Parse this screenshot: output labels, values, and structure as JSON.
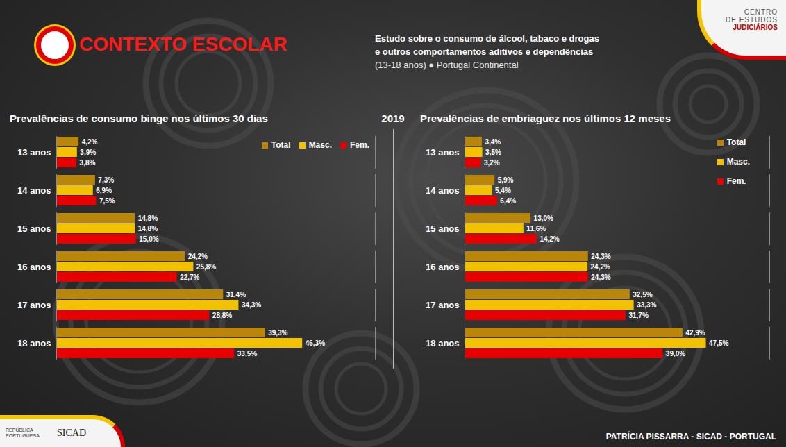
{
  "page": {
    "header": "CONTEXTO ESCOLAR",
    "subtitle": [
      "Estudo sobre o consumo de álcool, tabaco e drogas",
      "e outros comportamentos aditivos e dependências",
      "(13-18 anos) ● Portugal Continental"
    ],
    "year": "2019",
    "logo": [
      "CENTRO",
      "DE ESTUDOS",
      "JUDICIÁRIOS"
    ],
    "bottom_logos": [
      "REPÚBLICA PORTUGUESA",
      "SICAD"
    ],
    "footer": "PATRÍCIA PISSARRA - SICAD - PORTUGAL"
  },
  "chart_data": [
    {
      "type": "bar",
      "orientation": "horizontal",
      "title": "Prevalências de consumo binge nos últimos 30 dias",
      "categories": [
        "13 anos",
        "14 anos",
        "15 anos",
        "16 anos",
        "17 anos",
        "18 anos"
      ],
      "series": [
        {
          "name": "Total",
          "color": "#b8860b",
          "values": [
            4.2,
            7.3,
            14.8,
            24.2,
            31.4,
            39.3
          ],
          "value_labels": [
            "4,2%",
            "7,3%",
            "14,8%",
            "24,2%",
            "31,4%",
            "39,3%"
          ]
        },
        {
          "name": "Masc.",
          "color": "#f2c200",
          "values": [
            3.9,
            6.9,
            14.8,
            25.8,
            34.3,
            46.3
          ],
          "value_labels": [
            "3,9%",
            "6,9%",
            "14,8%",
            "25,8%",
            "34,3%",
            "46,3%"
          ]
        },
        {
          "name": "Fem.",
          "color": "#e60000",
          "values": [
            3.8,
            7.5,
            15.0,
            22.7,
            28.8,
            33.5
          ],
          "value_labels": [
            "3,8%",
            "7,5%",
            "15,0%",
            "22,7%",
            "28,8%",
            "33,5%"
          ]
        }
      ],
      "xlim": [
        0,
        60
      ],
      "data_labels": true,
      "tick_labels": "y",
      "legend": "top-right",
      "grid": false
    },
    {
      "type": "bar",
      "orientation": "horizontal",
      "title": "Prevalências de embriaguez nos últimos 12 meses",
      "categories": [
        "13 anos",
        "14 anos",
        "15 anos",
        "16 anos",
        "17 anos",
        "18 anos"
      ],
      "series": [
        {
          "name": "Total",
          "color": "#b8860b",
          "values": [
            3.4,
            5.9,
            13.0,
            24.3,
            32.5,
            42.9
          ],
          "value_labels": [
            "3,4%",
            "5,9%",
            "13,0%",
            "24,3%",
            "32,5%",
            "42,9%"
          ]
        },
        {
          "name": "Masc.",
          "color": "#f2c200",
          "values": [
            3.5,
            5.4,
            11.6,
            24.2,
            33.3,
            47.5
          ],
          "value_labels": [
            "3,5%",
            "5,4%",
            "11,6%",
            "24,2%",
            "33,3%",
            "47,5%"
          ]
        },
        {
          "name": "Fem.",
          "color": "#e60000",
          "values": [
            3.2,
            6.4,
            14.2,
            24.3,
            31.7,
            39.0
          ],
          "value_labels": [
            "3,2%",
            "6,4%",
            "14,2%",
            "24,3%",
            "31,7%",
            "39,0%"
          ]
        }
      ],
      "xlim": [
        0,
        60
      ],
      "data_labels": true,
      "tick_labels": "y",
      "legend": "top-right",
      "grid": false
    }
  ]
}
